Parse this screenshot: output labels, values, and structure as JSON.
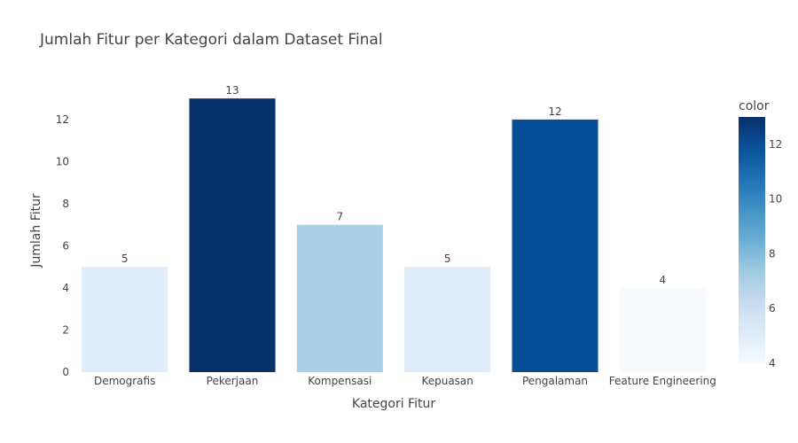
{
  "chart_data": {
    "type": "bar",
    "title": "Jumlah Fitur per Kategori dalam Dataset Final",
    "xlabel": "Kategori Fitur",
    "ylabel": "Jumlah Fitur",
    "categories": [
      "Demografis",
      "Pekerjaan",
      "Kompensasi",
      "Kepuasan",
      "Pengalaman",
      "Feature Engineering"
    ],
    "values": [
      5,
      13,
      7,
      5,
      12,
      4
    ],
    "ylim": [
      0,
      13.68
    ],
    "yticks": [
      0,
      2,
      4,
      6,
      8,
      10,
      12
    ],
    "grid": false,
    "colorbar": {
      "title": "color",
      "range": [
        4,
        13
      ],
      "ticks": [
        4,
        6,
        8,
        10,
        12
      ],
      "colorscale": "Blues",
      "colors": [
        "#f7fbff",
        "#deebf7",
        "#c6dbef",
        "#9ecae1",
        "#6baed6",
        "#4292c6",
        "#2171b5",
        "#08519c",
        "#08306b"
      ]
    }
  }
}
